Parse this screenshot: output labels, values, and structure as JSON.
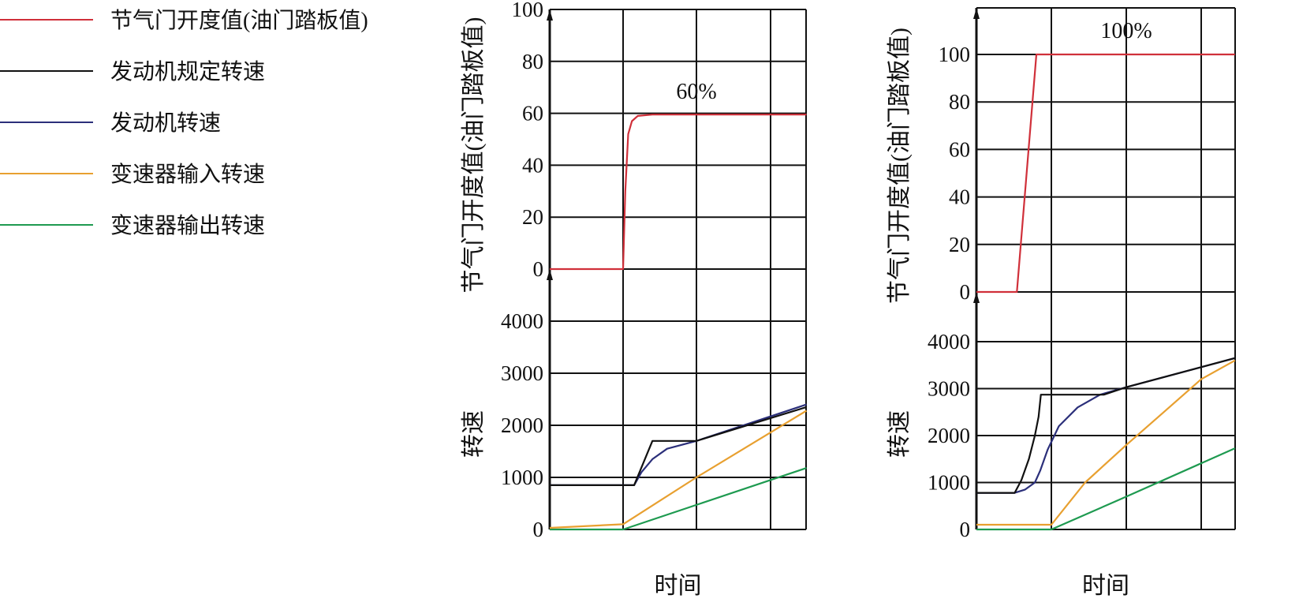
{
  "legend": [
    {
      "label": "节气门开度值(油门踏板值)",
      "color": "#d0303a"
    },
    {
      "label": "发动机规定转速",
      "color": "#111111"
    },
    {
      "label": "发动机转速",
      "color": "#2b2f7a"
    },
    {
      "label": "变速器输入转速",
      "color": "#e8a030"
    },
    {
      "label": "变速器输出转速",
      "color": "#1e9a50"
    }
  ],
  "chart_data": [
    {
      "type": "line",
      "xlabel": "时间",
      "upper": {
        "ylabel": "节气门开度值(油门踏板值)",
        "yticks": [
          "0",
          "20",
          "40",
          "60",
          "80",
          "100"
        ],
        "ylim": [
          0,
          100
        ],
        "annotation": "60%",
        "series": [
          {
            "key": "throttle",
            "x": [
              0,
              1.0,
              1.03,
              1.07,
              1.12,
              1.2,
              1.4,
              3.5
            ],
            "y": [
              0,
              0,
              30,
              52,
              57,
              59,
              59.5,
              59.5
            ]
          }
        ]
      },
      "lower": {
        "ylabel": "转速",
        "yticks": [
          "0",
          "1000",
          "2000",
          "3000",
          "4000"
        ],
        "ylim": [
          0,
          5000
        ],
        "series": [
          {
            "key": "target_rpm",
            "x": [
              0,
              1.15,
              1.4,
              2.0,
              3.5
            ],
            "y": [
              850,
              850,
              1700,
              1700,
              2350
            ]
          },
          {
            "key": "engine_rpm",
            "x": [
              0,
              1.15,
              1.25,
              1.4,
              1.6,
              2.0,
              3.5
            ],
            "y": [
              850,
              850,
              1100,
              1350,
              1550,
              1700,
              2400
            ]
          },
          {
            "key": "trans_input_rpm",
            "x": [
              0,
              1.0,
              2.0,
              3.5
            ],
            "y": [
              30,
              100,
              1000,
              2280
            ]
          },
          {
            "key": "trans_output_rpm",
            "x": [
              0,
              1.0,
              3.5
            ],
            "y": [
              0,
              0,
              1180
            ]
          }
        ]
      },
      "xlim": [
        0,
        3.5
      ],
      "grid": true
    },
    {
      "type": "line",
      "xlabel": "时间",
      "upper": {
        "ylabel": "节气门开度值(油门踏板值)",
        "yticks": [
          "0",
          "20",
          "40",
          "60",
          "80",
          "100"
        ],
        "ylim": [
          0,
          120
        ],
        "annotation": "100%",
        "series": [
          {
            "key": "throttle",
            "x": [
              0,
              0.54,
              0.8,
              3.45
            ],
            "y": [
              0,
              0,
              100,
              100
            ]
          }
        ]
      },
      "lower": {
        "ylabel": "转速",
        "yticks": [
          "0",
          "1000",
          "2000",
          "3000",
          "4000"
        ],
        "ylim": [
          0,
          5000
        ],
        "series": [
          {
            "key": "target_rpm",
            "x": [
              0,
              0.51,
              0.6,
              0.7,
              0.78,
              0.83,
              0.86,
              1.7,
              2.0,
              3.45
            ],
            "y": [
              780,
              780,
              1050,
              1500,
              2000,
              2400,
              2870,
              2870,
              3030,
              3650
            ]
          },
          {
            "key": "engine_rpm",
            "x": [
              0,
              0.51,
              0.65,
              0.78,
              0.85,
              0.95,
              1.1,
              1.35,
              1.65,
              2.0,
              3.45
            ],
            "y": [
              780,
              780,
              850,
              1000,
              1250,
              1700,
              2200,
              2600,
              2870,
              3030,
              3650
            ]
          },
          {
            "key": "trans_input_rpm",
            "x": [
              0,
              1.0,
              1.45,
              2.0,
              2.5,
              3.0,
              3.45
            ],
            "y": [
              100,
              100,
              1000,
              1800,
              2500,
              3200,
              3600
            ]
          },
          {
            "key": "trans_output_rpm",
            "x": [
              0,
              1.0,
              2.0,
              3.45
            ],
            "y": [
              0,
              0,
              700,
              1730
            ]
          }
        ]
      },
      "xlim": [
        0,
        3.45
      ],
      "grid": true
    }
  ]
}
